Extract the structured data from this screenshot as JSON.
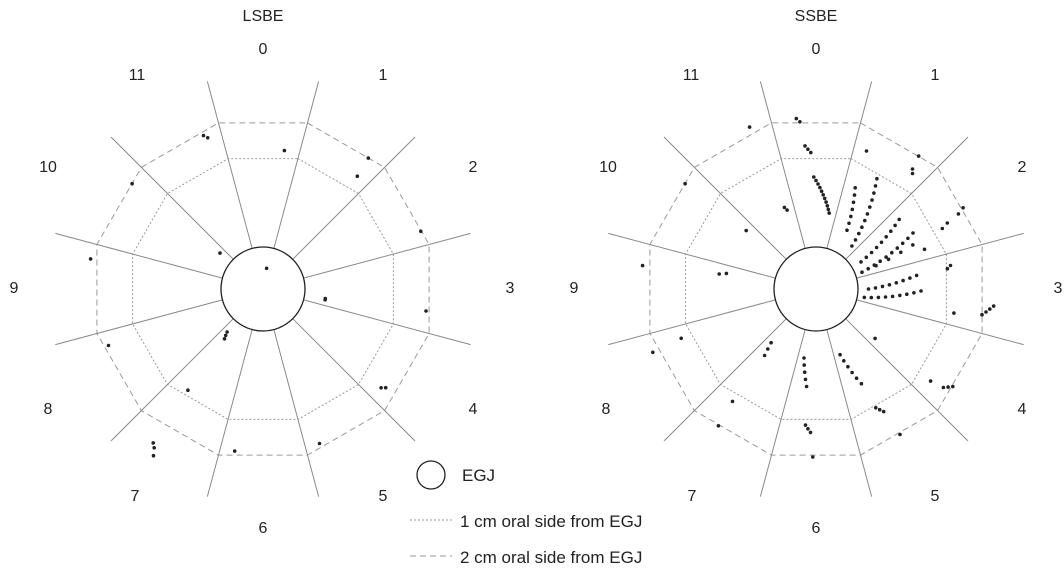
{
  "panels": [
    {
      "title": "LSBE",
      "clock_labels": [
        "0",
        "1",
        "2",
        "3",
        "4",
        "5",
        "6",
        "7",
        "8",
        "9",
        "10",
        "11"
      ],
      "dots": [
        [
          0,
          0.5
        ],
        [
          0,
          2.2
        ],
        [
          1,
          2.3
        ],
        [
          1,
          2.6
        ],
        [
          2,
          2.6
        ],
        [
          3,
          1.1
        ],
        [
          3,
          1.1
        ],
        [
          3,
          2.55
        ],
        [
          4,
          2.4
        ],
        [
          4,
          2.45
        ],
        [
          5,
          2.55
        ],
        [
          6,
          2.55
        ],
        [
          7,
          1.0
        ],
        [
          7,
          1.05
        ],
        [
          7,
          1.1
        ],
        [
          7,
          2.0
        ],
        [
          7,
          2.9
        ],
        [
          7,
          2.95
        ],
        [
          7,
          3.05
        ],
        [
          8,
          2.55
        ],
        [
          9,
          2.7
        ],
        [
          10,
          1.0
        ],
        [
          10,
          2.6
        ],
        [
          11,
          2.5
        ],
        [
          11,
          2.55
        ]
      ]
    },
    {
      "title": "SSBE",
      "clock_labels": [
        "0",
        "1",
        "2",
        "3",
        "4",
        "5",
        "6",
        "7",
        "8",
        "9",
        "10",
        "11"
      ],
      "dots": [
        [
          0,
          1.3
        ],
        [
          0,
          1.35
        ],
        [
          0,
          1.4
        ],
        [
          0,
          1.45
        ],
        [
          0,
          1.5
        ],
        [
          0,
          1.55
        ],
        [
          0,
          1.6
        ],
        [
          0,
          1.65
        ],
        [
          0,
          1.7
        ],
        [
          0,
          1.75
        ],
        [
          0,
          1.8
        ],
        [
          0,
          2.15
        ],
        [
          0,
          2.2
        ],
        [
          0,
          2.25
        ],
        [
          0,
          2.6
        ],
        [
          0,
          2.65
        ],
        [
          1,
          1.0
        ],
        [
          1,
          1.1
        ],
        [
          1,
          1.2
        ],
        [
          1,
          1.3
        ],
        [
          1,
          1.4
        ],
        [
          1,
          1.5
        ],
        [
          1,
          1.6
        ],
        [
          1,
          1.7
        ],
        [
          1,
          1.8
        ],
        [
          1,
          1.9
        ],
        [
          1,
          2.0
        ],
        [
          1,
          1.15
        ],
        [
          1,
          1.25
        ],
        [
          1,
          1.35
        ],
        [
          1,
          1.45
        ],
        [
          1,
          1.55
        ],
        [
          1,
          1.65
        ],
        [
          1,
          1.75
        ],
        [
          1,
          2.3
        ],
        [
          1,
          2.35
        ],
        [
          1,
          2.4
        ],
        [
          1,
          2.6
        ],
        [
          2,
          0.9
        ],
        [
          2,
          1.0
        ],
        [
          2,
          1.1
        ],
        [
          2,
          1.2
        ],
        [
          2,
          1.3
        ],
        [
          2,
          1.4
        ],
        [
          2,
          1.5
        ],
        [
          2,
          1.6
        ],
        [
          2,
          1.7
        ],
        [
          2,
          1.8
        ],
        [
          2,
          0.95
        ],
        [
          2,
          1.05
        ],
        [
          2,
          1.15
        ],
        [
          2,
          1.25
        ],
        [
          2,
          1.35
        ],
        [
          2,
          1.45
        ],
        [
          2,
          1.55
        ],
        [
          2,
          1.65
        ],
        [
          2,
          1.75
        ],
        [
          2,
          1.85
        ],
        [
          2,
          1.12
        ],
        [
          2,
          1.32
        ],
        [
          2,
          1.52
        ],
        [
          2,
          1.72
        ],
        [
          2,
          2.2
        ],
        [
          2,
          2.3
        ],
        [
          2,
          2.5
        ],
        [
          2,
          2.6
        ],
        [
          3,
          0.9
        ],
        [
          3,
          1.0
        ],
        [
          3,
          1.1
        ],
        [
          3,
          1.2
        ],
        [
          3,
          1.3
        ],
        [
          3,
          1.4
        ],
        [
          3,
          1.5
        ],
        [
          3,
          1.6
        ],
        [
          3,
          1.7
        ],
        [
          3,
          0.95
        ],
        [
          3,
          1.05
        ],
        [
          3,
          1.15
        ],
        [
          3,
          1.25
        ],
        [
          3,
          1.35
        ],
        [
          3,
          1.45
        ],
        [
          3,
          1.55
        ],
        [
          3,
          1.65
        ],
        [
          3,
          2.1
        ],
        [
          3,
          2.15
        ],
        [
          3,
          2.2
        ],
        [
          3,
          2.6
        ],
        [
          3,
          2.65
        ],
        [
          3,
          2.7
        ],
        [
          3,
          2.75
        ],
        [
          4,
          1.3
        ],
        [
          4,
          2.3
        ],
        [
          4,
          2.5
        ],
        [
          4,
          2.55
        ],
        [
          4,
          2.6
        ],
        [
          5,
          1.2
        ],
        [
          5,
          1.3
        ],
        [
          5,
          1.4
        ],
        [
          5,
          1.5
        ],
        [
          5,
          1.6
        ],
        [
          5,
          1.7
        ],
        [
          5,
          2.1
        ],
        [
          5,
          2.15
        ],
        [
          5,
          2.2
        ],
        [
          5,
          2.6
        ],
        [
          6,
          1.2
        ],
        [
          6,
          1.3
        ],
        [
          6,
          1.4
        ],
        [
          6,
          1.5
        ],
        [
          6,
          1.6
        ],
        [
          6,
          2.15
        ],
        [
          6,
          2.2
        ],
        [
          6,
          2.25
        ],
        [
          6,
          2.6
        ],
        [
          7,
          1.2
        ],
        [
          7,
          1.3
        ],
        [
          7,
          1.4
        ],
        [
          7,
          2.2
        ],
        [
          7,
          2.6
        ],
        [
          8,
          2.25
        ],
        [
          8,
          2.7
        ],
        [
          9,
          1.5
        ],
        [
          9,
          1.6
        ],
        [
          9,
          2.7
        ],
        [
          10,
          1.5
        ],
        [
          10,
          2.6
        ],
        [
          11,
          1.4
        ],
        [
          11,
          1.45
        ],
        [
          11,
          2.7
        ]
      ]
    }
  ],
  "legend": {
    "egj_label": "EGJ",
    "line1_label": "1 cm oral side from EGJ",
    "line2_label": "2 cm oral side from EGJ"
  },
  "colors": {
    "ink": "#222222",
    "spoke": "#8a8a8a",
    "ring": "#9a9a9a"
  }
}
